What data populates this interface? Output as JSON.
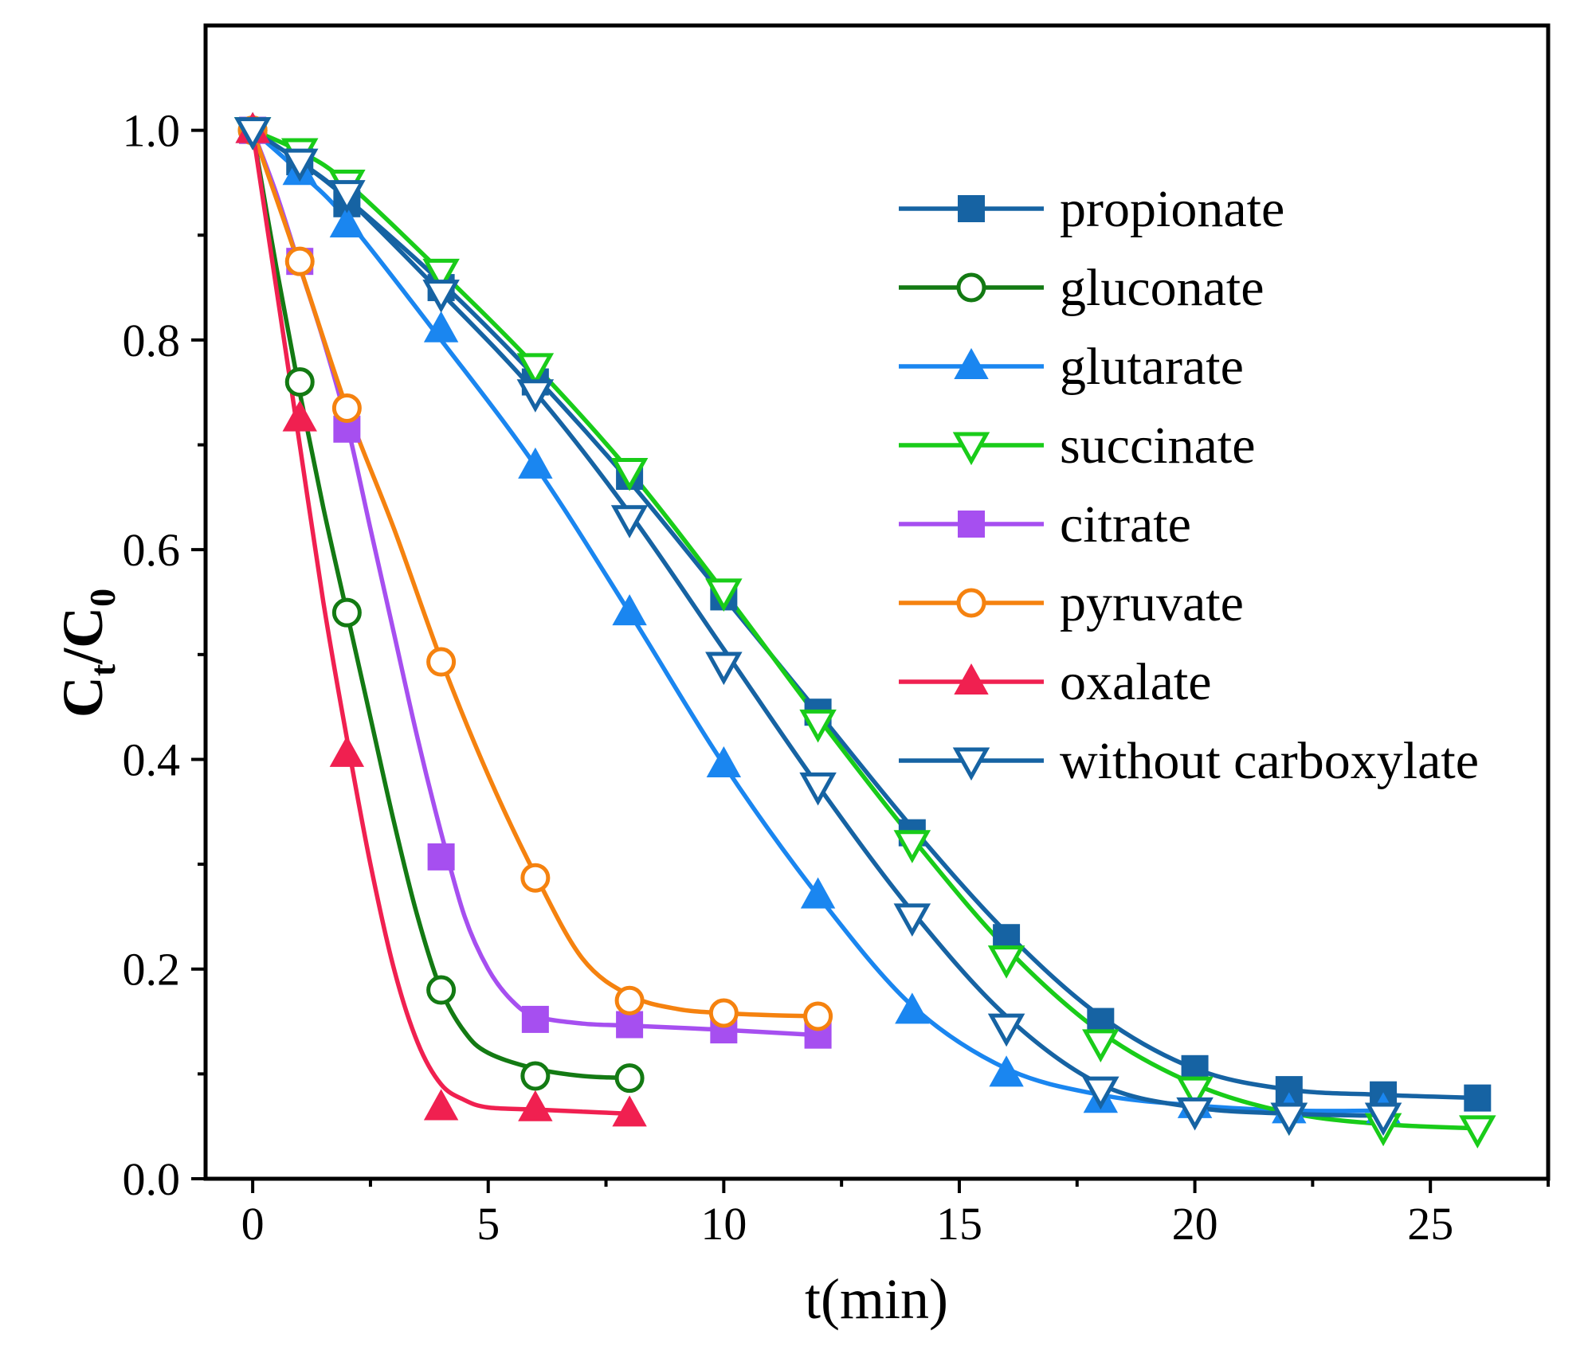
{
  "chart_data": {
    "type": "line",
    "title": "",
    "xlabel": "t(min)",
    "ylabel_main": "C",
    "ylabel_sub1": "t",
    "ylabel_slash": "/C",
    "ylabel_sub2": "0",
    "xlim": [
      -1,
      27.5
    ],
    "ylim": [
      0,
      1.1
    ],
    "xticks": [
      0,
      5,
      10,
      15,
      20,
      25
    ],
    "xtick_labels": [
      "0",
      "5",
      "10",
      "15",
      "20",
      "25"
    ],
    "yticks": [
      0.0,
      0.2,
      0.4,
      0.6,
      0.8,
      1.0
    ],
    "ytick_labels": [
      "0.0",
      "0.2",
      "0.4",
      "0.6",
      "0.8",
      "1.0"
    ],
    "x_minor_ticks": [
      2.5,
      7.5,
      12.5,
      17.5,
      22.5,
      27.5
    ],
    "y_minor_ticks": [
      0.1,
      0.3,
      0.5,
      0.7,
      0.9
    ],
    "legend_position": "top-right",
    "series": [
      {
        "name": "propionate",
        "color": "#1663a3",
        "marker": "square-filled",
        "x": [
          0,
          1,
          2,
          4,
          6,
          8,
          10,
          12,
          14,
          16,
          18,
          20,
          22,
          24,
          26
        ],
        "y": [
          1.0,
          0.97,
          0.93,
          0.85,
          0.76,
          0.67,
          0.555,
          0.445,
          0.33,
          0.23,
          0.15,
          0.105,
          0.085,
          0.08,
          0.077
        ],
        "curve_x": [
          0,
          1,
          2,
          4,
          6,
          8,
          10,
          12,
          14,
          16,
          18,
          20,
          22,
          24,
          26
        ],
        "curve_y": [
          1.0,
          0.97,
          0.935,
          0.855,
          0.765,
          0.665,
          0.555,
          0.445,
          0.335,
          0.235,
          0.155,
          0.105,
          0.085,
          0.08,
          0.077
        ]
      },
      {
        "name": "gluconate",
        "color": "#137a13",
        "marker": "circle-open",
        "x": [
          0,
          1,
          2,
          4,
          6,
          8
        ],
        "y": [
          1.0,
          0.76,
          0.54,
          0.18,
          0.098,
          0.096
        ],
        "curve_x": [
          0,
          0.5,
          1,
          1.5,
          2,
          2.5,
          3,
          3.5,
          4,
          4.5,
          5,
          6,
          7,
          8
        ],
        "curve_y": [
          1.0,
          0.87,
          0.75,
          0.64,
          0.54,
          0.44,
          0.34,
          0.25,
          0.18,
          0.14,
          0.12,
          0.105,
          0.098,
          0.096
        ]
      },
      {
        "name": "glutarate",
        "color": "#1a86f0",
        "marker": "triangle-filled",
        "x": [
          0,
          1,
          2,
          4,
          6,
          8,
          10,
          12,
          14,
          16,
          18,
          20,
          22,
          24
        ],
        "y": [
          1.0,
          0.96,
          0.91,
          0.81,
          0.68,
          0.54,
          0.395,
          0.27,
          0.16,
          0.1,
          0.075,
          0.07,
          0.065,
          0.065
        ],
        "curve_x": [
          0,
          1,
          2,
          4,
          6,
          8,
          10,
          12,
          14,
          16,
          18,
          20,
          22,
          24
        ],
        "curve_y": [
          1.0,
          0.96,
          0.915,
          0.8,
          0.68,
          0.54,
          0.395,
          0.27,
          0.165,
          0.105,
          0.08,
          0.07,
          0.065,
          0.065
        ]
      },
      {
        "name": "succinate",
        "color": "#19cc19",
        "marker": "triangle-down-open",
        "x": [
          0,
          1,
          2,
          4,
          6,
          8,
          10,
          12,
          14,
          16,
          18,
          20,
          22,
          24,
          26
        ],
        "y": [
          1.0,
          0.98,
          0.95,
          0.865,
          0.775,
          0.675,
          0.56,
          0.435,
          0.32,
          0.21,
          0.13,
          0.085,
          0.06,
          0.05,
          0.048
        ],
        "curve_x": [
          0,
          1,
          2,
          4,
          6,
          8,
          10,
          12,
          14,
          16,
          18,
          20,
          22,
          24,
          26
        ],
        "curve_y": [
          1.0,
          0.98,
          0.95,
          0.865,
          0.775,
          0.675,
          0.56,
          0.44,
          0.325,
          0.22,
          0.14,
          0.09,
          0.063,
          0.052,
          0.048
        ]
      },
      {
        "name": "citrate",
        "color": "#a64ff0",
        "marker": "square-filled",
        "x": [
          0,
          1,
          2,
          4,
          6,
          8,
          10,
          12
        ],
        "y": [
          1.0,
          0.875,
          0.715,
          0.307,
          0.152,
          0.147,
          0.142,
          0.137
        ],
        "curve_x": [
          0,
          0.5,
          1,
          1.5,
          2,
          2.5,
          3,
          3.5,
          4,
          4.5,
          5,
          5.5,
          6,
          7,
          8,
          10,
          12
        ],
        "curve_y": [
          1.0,
          0.94,
          0.87,
          0.8,
          0.72,
          0.62,
          0.52,
          0.42,
          0.33,
          0.25,
          0.2,
          0.17,
          0.155,
          0.148,
          0.146,
          0.142,
          0.137
        ]
      },
      {
        "name": "pyruvate",
        "color": "#f5820f",
        "marker": "circle-open",
        "x": [
          0,
          1,
          2,
          4,
          6,
          8,
          10,
          12
        ],
        "y": [
          1.0,
          0.875,
          0.735,
          0.493,
          0.287,
          0.17,
          0.158,
          0.155
        ],
        "curve_x": [
          0,
          1,
          2,
          3,
          4,
          5,
          6,
          7,
          8,
          9,
          10,
          11,
          12
        ],
        "curve_y": [
          1.0,
          0.87,
          0.735,
          0.62,
          0.495,
          0.385,
          0.29,
          0.21,
          0.175,
          0.162,
          0.158,
          0.156,
          0.155
        ]
      },
      {
        "name": "oxalate",
        "color": "#f02050",
        "marker": "triangle-filled",
        "x": [
          0,
          1,
          2,
          4,
          6,
          8
        ],
        "y": [
          1.0,
          0.725,
          0.405,
          0.068,
          0.067,
          0.062
        ],
        "curve_x": [
          0,
          0.5,
          1,
          1.5,
          2,
          2.5,
          3,
          3.5,
          4,
          4.5,
          5,
          6,
          7,
          8
        ],
        "curve_y": [
          1.0,
          0.85,
          0.7,
          0.55,
          0.42,
          0.3,
          0.2,
          0.13,
          0.09,
          0.075,
          0.068,
          0.066,
          0.064,
          0.062
        ]
      },
      {
        "name": "without carboxylate",
        "color": "#1663a3",
        "marker": "triangle-down-open",
        "x": [
          0,
          1,
          2,
          4,
          6,
          8,
          10,
          12,
          14,
          16,
          18,
          20,
          22,
          24
        ],
        "y": [
          1.0,
          0.97,
          0.94,
          0.845,
          0.75,
          0.63,
          0.49,
          0.375,
          0.25,
          0.145,
          0.085,
          0.065,
          0.06,
          0.06
        ],
        "curve_x": [
          0,
          1,
          2,
          4,
          6,
          8,
          10,
          12,
          14,
          16,
          18,
          20,
          22,
          24
        ],
        "curve_y": [
          1.0,
          0.97,
          0.935,
          0.845,
          0.75,
          0.635,
          0.505,
          0.375,
          0.255,
          0.155,
          0.09,
          0.068,
          0.062,
          0.06
        ]
      }
    ]
  }
}
